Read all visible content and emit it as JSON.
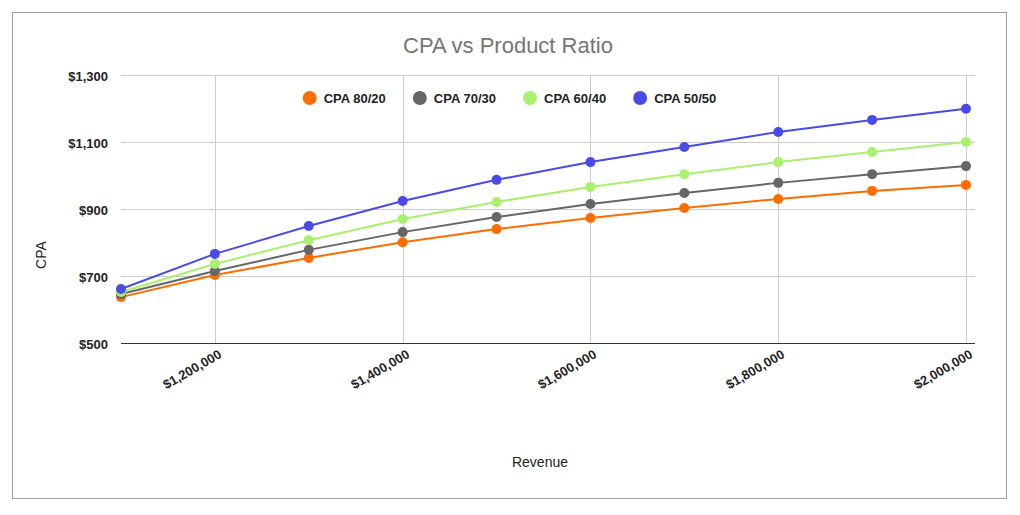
{
  "chart_data": {
    "type": "line",
    "title": "CPA vs Product Ratio",
    "x_label": "Revenue",
    "y_label": "CPA",
    "x": [
      1100000,
      1200000,
      1300000,
      1400000,
      1500000,
      1600000,
      1700000,
      1800000,
      1900000,
      2000000
    ],
    "series": [
      {
        "name": "CPA 80/20",
        "color": "#ff6d01",
        "values": [
          637,
          703,
          754,
          801,
          840,
          873,
          903,
          930,
          954,
          972
        ]
      },
      {
        "name": "CPA 70/30",
        "color": "#666666",
        "values": [
          646,
          715,
          778,
          831,
          876,
          915,
          948,
          978,
          1004,
          1028
        ]
      },
      {
        "name": "CPA 60/40",
        "color": "#a8f06e",
        "values": [
          652,
          736,
          807,
          870,
          921,
          966,
          1004,
          1040,
          1070,
          1100
        ]
      },
      {
        "name": "CPA 50/50",
        "color": "#4a4ae6",
        "values": [
          661,
          766,
          849,
          924,
          987,
          1040,
          1085,
          1130,
          1166,
          1199
        ]
      }
    ],
    "xlim": [
      1100000,
      2000000
    ],
    "xticks": [
      {
        "value": 1200000,
        "label": "$1,200,000"
      },
      {
        "value": 1400000,
        "label": "$1,400,000"
      },
      {
        "value": 1600000,
        "label": "$1,600,000"
      },
      {
        "value": 1800000,
        "label": "$1,800,000"
      },
      {
        "value": 2000000,
        "label": "$2,000,000"
      }
    ],
    "ylim": [
      500,
      1300
    ],
    "yticks": [
      {
        "value": 500,
        "label": "$500"
      },
      {
        "value": 700,
        "label": "$700"
      },
      {
        "value": 900,
        "label": "$900"
      },
      {
        "value": 1100,
        "label": "$1,100"
      },
      {
        "value": 1300,
        "label": "$1,300"
      }
    ],
    "grid": true,
    "legend": "top",
    "marker": "circle",
    "line_style": "solid"
  }
}
